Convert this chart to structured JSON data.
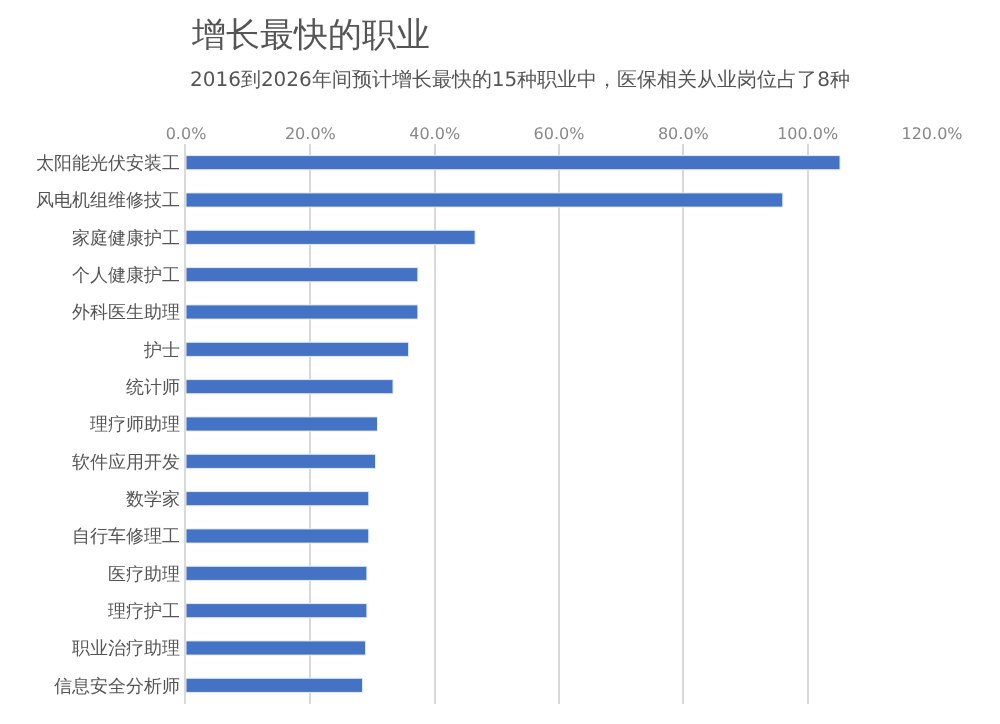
{
  "chart_data": {
    "type": "bar",
    "orientation": "horizontal",
    "title": "增长最快的职业",
    "subtitle": "2016到2026年间预计增长最快的15种职业中，医保相关从业岗位占了8种",
    "categories": [
      "太阳能光伏安装工",
      "风电机组维修技工",
      "家庭健康护工",
      "个人健康护工",
      "外科医生助理",
      "护士",
      "统计师",
      "理疗师助理",
      "软件应用开发",
      "数学家",
      "自行车修理工",
      "医疗助理",
      "理疗护工",
      "职业治疗助理",
      "信息安全分析师"
    ],
    "values": [
      105.2,
      96.0,
      46.5,
      37.3,
      37.3,
      35.8,
      33.3,
      30.8,
      30.5,
      29.4,
      29.4,
      29.1,
      29.1,
      28.9,
      28.4
    ],
    "color": "#4472c4",
    "xlim": [
      0,
      120
    ],
    "xticks": [
      {
        "value": 0,
        "label": "0.0%"
      },
      {
        "value": 20,
        "label": "20.0%"
      },
      {
        "value": 40,
        "label": "40.0%"
      },
      {
        "value": 60,
        "label": "60.0%"
      },
      {
        "value": 80,
        "label": "80.0%"
      },
      {
        "value": 100,
        "label": "100.0%"
      },
      {
        "value": 120,
        "label": "120.0%"
      }
    ],
    "grid": "x"
  }
}
